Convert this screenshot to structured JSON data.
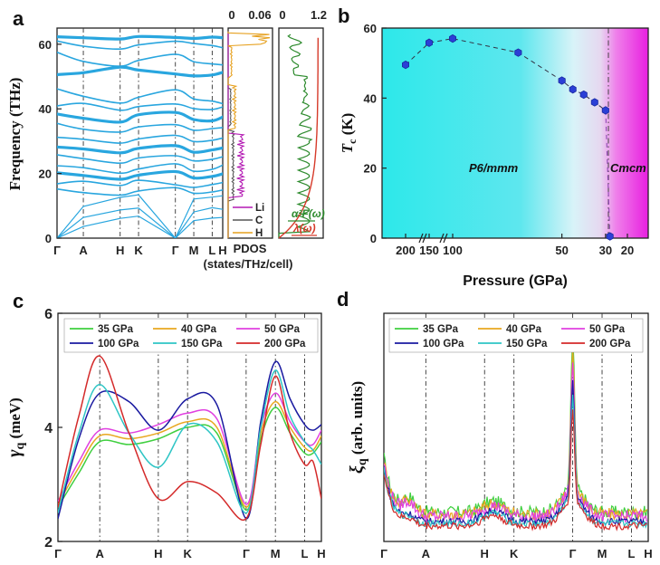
{
  "panel_labels": [
    "a",
    "b",
    "c",
    "d"
  ],
  "colors": {
    "band": "#29a6df",
    "Li": "#b31ab3",
    "C": "#555555",
    "H": "#e6a01e",
    "a2f": "#2e8b2e",
    "lambda": "#d63a2a",
    "tc": "#2b3fd6",
    "p35": "#3fcf3f",
    "p40": "#e8a71f",
    "p50": "#e040e0",
    "p100": "#1a1aa0",
    "p150": "#2ec5c5",
    "p200": "#d42a2a"
  },
  "chart_data": [
    {
      "id": "a_bands",
      "type": "line",
      "ylabel": "Frequency (THz)",
      "ylim": [
        0,
        65
      ],
      "yticks": [
        0,
        20,
        40,
        60
      ],
      "kpath": [
        "Γ",
        "A",
        "H",
        "K",
        "Γ",
        "M",
        "L",
        "H"
      ],
      "kpos": [
        0,
        1,
        2.4,
        3.1,
        4.5,
        5.2,
        5.9,
        6.3
      ],
      "flat_bands": [
        {
          "name": "b1",
          "values": [
            62.3,
            62.0,
            61.6,
            62.4,
            62.1,
            61.8,
            62.2,
            62.0
          ]
        },
        {
          "name": "b2",
          "values": [
            61.0,
            59.4,
            58.5,
            59.8,
            60.9,
            60.2,
            59.6,
            58.9
          ]
        },
        {
          "name": "b3",
          "values": [
            57.5,
            54.7,
            53.2,
            55.0,
            56.9,
            54.6,
            53.9,
            53.6
          ]
        },
        {
          "name": "b4",
          "values": [
            50.6,
            51.2,
            52.9,
            52.0,
            50.8,
            50.2,
            50.5,
            51.3
          ]
        },
        {
          "name": "b5",
          "values": [
            46.2,
            43.9,
            41.8,
            43.6,
            45.9,
            43.1,
            42.4,
            41.6
          ]
        },
        {
          "name": "b6",
          "values": [
            40.9,
            41.7,
            39.6,
            40.7,
            41.5,
            40.1,
            39.8,
            40.6
          ]
        },
        {
          "name": "b7",
          "values": [
            38.4,
            37.1,
            35.9,
            38.2,
            38.9,
            36.7,
            36.3,
            37.5
          ]
        },
        {
          "name": "b8",
          "values": [
            35.5,
            33.7,
            32.8,
            34.4,
            35.1,
            33.4,
            33.9,
            34.2
          ]
        },
        {
          "name": "b9",
          "values": [
            31.2,
            30.6,
            29.4,
            30.7,
            31.8,
            29.9,
            30.3,
            31.0
          ]
        },
        {
          "name": "b10",
          "values": [
            28.2,
            27.6,
            26.4,
            27.8,
            28.6,
            26.6,
            27.3,
            27.9
          ]
        },
        {
          "name": "b11",
          "values": [
            25.8,
            24.6,
            23.2,
            24.8,
            25.5,
            23.9,
            24.4,
            25.2
          ]
        },
        {
          "name": "b12",
          "values": [
            22.4,
            21.8,
            20.1,
            21.4,
            23.0,
            20.7,
            21.3,
            22.6
          ]
        },
        {
          "name": "b13",
          "values": [
            20.2,
            19.4,
            18.2,
            19.5,
            20.6,
            18.6,
            19.1,
            19.9
          ]
        },
        {
          "name": "b14",
          "values": [
            16.8,
            17.6,
            16.3,
            17.9,
            16.5,
            15.7,
            16.6,
            17.2
          ]
        },
        {
          "name": "b15",
          "values": [
            15.2,
            14.1,
            13.3,
            14.6,
            15.6,
            13.9,
            14.3,
            14.9
          ]
        }
      ],
      "acoustic_bands": [
        {
          "name": "ac1",
          "values": [
            0,
            9.8,
            12.6,
            13.4,
            0,
            12.1,
            12.7,
            13.1
          ]
        },
        {
          "name": "ac2",
          "values": [
            0,
            6.4,
            8.7,
            9.3,
            0,
            8.1,
            9.4,
            8.9
          ]
        },
        {
          "name": "ac3",
          "values": [
            0,
            3.6,
            6.1,
            6.8,
            0,
            5.4,
            6.2,
            6.4
          ]
        }
      ]
    },
    {
      "id": "a_pdos",
      "type": "line",
      "xlabel": "PDOS",
      "xlabel2": "(states/THz/cell)",
      "xticks": [
        0,
        0.06
      ],
      "xlim": [
        0,
        0.09
      ],
      "legend": [
        "Li",
        "C",
        "H"
      ]
    },
    {
      "id": "a_eliashberg",
      "type": "line",
      "xticks": [
        0,
        1.2
      ],
      "xlim": [
        0,
        1.3
      ],
      "series": [
        {
          "name": "α²F(ω)"
        },
        {
          "name": "λ(ω)"
        }
      ]
    },
    {
      "id": "b_tc",
      "type": "scatter",
      "ylabel": "T",
      "ylabel_sub": "c",
      "ylabel_unit": " (K)",
      "xlabel": "Pressure (GPa)",
      "ylim": [
        0,
        60
      ],
      "yticks": [
        0,
        20,
        40,
        60
      ],
      "xticks": [
        "200",
        "150",
        "100",
        "50",
        "30",
        "20"
      ],
      "phase_labels": [
        "P6/mmm",
        "Cmcm"
      ],
      "points": [
        {
          "p": 200,
          "tc": 49.5
        },
        {
          "p": 150,
          "tc": 55.8
        },
        {
          "p": 100,
          "tc": 57.0
        },
        {
          "p": 70,
          "tc": 53.0
        },
        {
          "p": 50,
          "tc": 45.0
        },
        {
          "p": 45,
          "tc": 42.5
        },
        {
          "p": 40,
          "tc": 41.0
        },
        {
          "p": 35,
          "tc": 38.8
        },
        {
          "p": 30,
          "tc": 36.5
        },
        {
          "p": 28,
          "tc": 0.5
        }
      ]
    },
    {
      "id": "c_linewidth",
      "type": "line",
      "ylabel": "γ",
      "ylabel_sub": "q",
      "ylabel_unit": " (meV)",
      "ylim": [
        2,
        6
      ],
      "yticks": [
        2,
        4,
        6
      ],
      "kpath": [
        "Γ",
        "A",
        "H",
        "K",
        "Γ",
        "M",
        "L",
        "H"
      ],
      "kpos": [
        0,
        1,
        2.4,
        3.1,
        4.5,
        5.2,
        5.9,
        6.3
      ],
      "series": [
        {
          "name": "35 GPa",
          "color": "#3fcf3f",
          "x": [
            0,
            0.5,
            1.0,
            1.7,
            2.4,
            3.1,
            3.8,
            4.5,
            4.85,
            5.2,
            5.55,
            5.9,
            6.1,
            6.3
          ],
          "y": [
            2.6,
            3.2,
            3.75,
            3.7,
            3.8,
            4.0,
            3.9,
            2.55,
            3.8,
            4.35,
            3.9,
            3.55,
            3.55,
            3.75
          ]
        },
        {
          "name": "40 GPa",
          "color": "#e8a71f",
          "x": [
            0,
            0.5,
            1.0,
            1.7,
            2.4,
            3.1,
            3.8,
            4.5,
            4.85,
            5.2,
            5.55,
            5.9,
            6.1,
            6.3
          ],
          "y": [
            2.65,
            3.3,
            3.85,
            3.8,
            3.9,
            4.1,
            4.0,
            2.6,
            3.9,
            4.45,
            4.0,
            3.65,
            3.6,
            3.85
          ]
        },
        {
          "name": "50 GPa",
          "color": "#e040e0",
          "x": [
            0,
            0.5,
            1.0,
            1.7,
            2.4,
            3.1,
            3.8,
            4.5,
            4.85,
            5.2,
            5.55,
            5.9,
            6.1,
            6.3
          ],
          "y": [
            2.7,
            3.4,
            3.95,
            3.9,
            4.05,
            4.25,
            4.15,
            2.65,
            4.0,
            4.6,
            4.1,
            3.75,
            3.7,
            3.95
          ]
        },
        {
          "name": "100 GPa",
          "color": "#1a1aa0",
          "x": [
            0,
            0.5,
            1.0,
            1.7,
            2.4,
            3.1,
            3.8,
            4.5,
            4.85,
            5.2,
            5.55,
            5.9,
            6.1,
            6.3
          ],
          "y": [
            2.4,
            3.8,
            4.6,
            4.45,
            3.95,
            4.5,
            4.4,
            2.4,
            4.1,
            5.15,
            4.5,
            4.05,
            3.95,
            4.05
          ]
        },
        {
          "name": "150 GPa",
          "color": "#2ec5c5",
          "x": [
            0,
            0.5,
            1.0,
            1.7,
            2.4,
            3.1,
            3.8,
            4.5,
            4.85,
            5.2,
            5.55,
            5.9,
            6.1,
            6.3
          ],
          "y": [
            2.5,
            3.9,
            4.75,
            3.9,
            3.3,
            4.05,
            3.75,
            2.5,
            4.0,
            5.0,
            4.2,
            3.75,
            3.6,
            3.35
          ]
        },
        {
          "name": "200 GPa",
          "color": "#d42a2a",
          "x": [
            0,
            0.5,
            1.0,
            1.7,
            2.4,
            3.1,
            3.8,
            4.5,
            4.85,
            5.2,
            5.55,
            5.9,
            6.1,
            6.3
          ],
          "y": [
            2.6,
            4.2,
            5.25,
            3.9,
            2.75,
            3.05,
            2.85,
            2.4,
            3.7,
            4.9,
            3.9,
            3.35,
            3.4,
            2.75
          ]
        }
      ]
    },
    {
      "id": "d_nesting",
      "type": "line",
      "ylabel": "ξ",
      "ylabel_sub": "q",
      "ylabel_unit": " (arb. units)",
      "kpath": [
        "Γ",
        "A",
        "H",
        "K",
        "Γ",
        "M",
        "L",
        "H"
      ],
      "kpos": [
        0,
        1,
        2.4,
        3.1,
        4.5,
        5.2,
        5.9,
        6.3
      ],
      "series": [
        {
          "name": "35 GPa",
          "color": "#3fcf3f"
        },
        {
          "name": "40 GPa",
          "color": "#e8a71f"
        },
        {
          "name": "50 GPa",
          "color": "#e040e0"
        },
        {
          "name": "100 GPa",
          "color": "#1a1aa0"
        },
        {
          "name": "150 GPa",
          "color": "#2ec5c5"
        },
        {
          "name": "200 GPa",
          "color": "#d42a2a"
        }
      ]
    }
  ]
}
